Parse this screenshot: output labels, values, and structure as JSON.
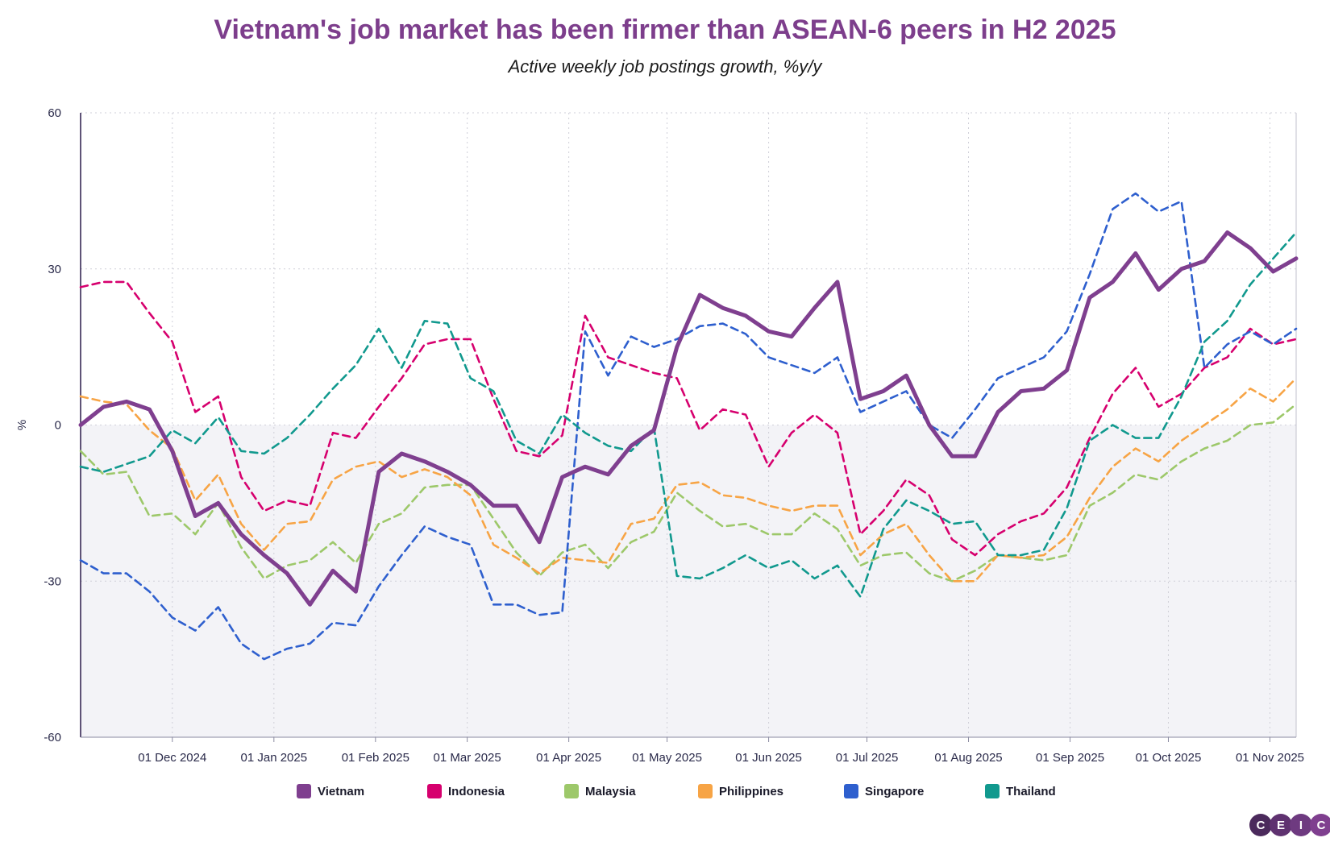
{
  "chart_data": {
    "type": "line",
    "title": "Vietnam's job market has been firmer than ASEAN-6 peers in H2 2025",
    "subtitle": "Active weekly job postings growth, %y/y",
    "ylabel": "%",
    "xlabel": "",
    "ylim": [
      -60,
      60
    ],
    "yticks": [
      "60",
      "30",
      "0",
      "-30",
      "-60"
    ],
    "xticks": [
      "01 Dec 2024",
      "01 Jan 2025",
      "01 Feb 2025",
      "01 Mar 2025",
      "01 Apr 2025",
      "01 May 2025",
      "01 Jun 2025",
      "01 Jul 2025",
      "01 Aug 2025",
      "01 Sep 2025",
      "01 Oct 2025",
      "01 Nov 2025"
    ],
    "x_start": "2024-11-03",
    "x_step_days": 7,
    "legend_position": "bottom",
    "grid": true,
    "series": [
      {
        "name": "Vietnam",
        "color": "#7f3f8f",
        "style": "solid",
        "values": [
          0,
          3.5,
          4.5,
          3,
          -5,
          -17.5,
          -15,
          -21,
          -25,
          -28.5,
          -34.5,
          -28,
          -32,
          -9,
          -5.5,
          -7,
          -9,
          -11.5,
          -15.5,
          -15.5,
          -22.5,
          -10,
          -8,
          -9.5,
          -4,
          -1,
          15,
          25,
          22.5,
          21,
          18,
          17,
          22.5,
          27.5,
          5,
          6.5,
          9.5,
          0,
          -6,
          -6,
          2.5,
          6.5,
          7,
          10.5,
          24.5,
          27.5,
          33,
          26,
          30,
          31.5,
          37,
          34,
          29.5,
          32
        ]
      },
      {
        "name": "Indonesia",
        "color": "#d6006e",
        "style": "dashed",
        "values": [
          26.5,
          27.5,
          27.5,
          21.5,
          16,
          2.5,
          5.5,
          -10,
          -16.5,
          -14.5,
          -15.5,
          -1.5,
          -2.5,
          3.5,
          9,
          15.5,
          16.5,
          16.5,
          5,
          -5,
          -6,
          -2,
          21,
          13,
          11.5,
          10,
          9,
          -1,
          3,
          2,
          -8,
          -1.5,
          2,
          -1.5,
          -21,
          -16.5,
          -10.5,
          -13.5,
          -22,
          -25,
          -21,
          -18.5,
          -17,
          -12,
          -2.5,
          6,
          11,
          3.5,
          6,
          11,
          13,
          18.5,
          15.5,
          16.5
        ]
      },
      {
        "name": "Malaysia",
        "color": "#9dc86a",
        "style": "dashed",
        "values": [
          -5,
          -9.5,
          -9,
          -17.5,
          -17,
          -21,
          -15,
          -23.5,
          -29.5,
          -27,
          -26,
          -22.5,
          -26.5,
          -19,
          -17,
          -12,
          -11.5,
          -11.5,
          -18,
          -24.5,
          -29,
          -24.5,
          -23,
          -27.5,
          -22.5,
          -20.5,
          -13,
          -16.5,
          -19.5,
          -19,
          -21,
          -21,
          -17,
          -20,
          -27,
          -25,
          -24.5,
          -28.5,
          -30,
          -28,
          -25,
          -25.5,
          -26,
          -25,
          -15.5,
          -13,
          -9.5,
          -10.5,
          -7,
          -4.5,
          -3,
          0,
          0.5,
          4
        ]
      },
      {
        "name": "Philippines",
        "color": "#f7a445",
        "style": "dashed",
        "values": [
          5.5,
          4.5,
          4,
          -1,
          -4.5,
          -14.5,
          -9.5,
          -19,
          -24,
          -19,
          -18.5,
          -10.5,
          -8,
          -7,
          -10,
          -8.5,
          -10,
          -13.5,
          -23,
          -25.5,
          -28.5,
          -25.5,
          -26,
          -26.5,
          -19,
          -18,
          -11.5,
          -11,
          -13.5,
          -14,
          -15.5,
          -16.5,
          -15.5,
          -15.5,
          -25,
          -21,
          -19,
          -25,
          -30,
          -30,
          -25,
          -25.5,
          -25,
          -21.5,
          -14,
          -8,
          -4.5,
          -7,
          -3,
          0,
          3,
          7,
          4.5,
          9
        ]
      },
      {
        "name": "Singapore",
        "color": "#2e5fce",
        "style": "dashed",
        "values": [
          -26,
          -28.5,
          -28.5,
          -32,
          -37,
          -39.5,
          -35,
          -42,
          -45,
          -43,
          -42,
          -38,
          -38.5,
          -31,
          -25,
          -19.5,
          -21.5,
          -23,
          -34.5,
          -34.5,
          -36.5,
          -36,
          18,
          9.5,
          17,
          15,
          16.5,
          19,
          19.5,
          17.5,
          13,
          11.5,
          10,
          13,
          2.5,
          4.5,
          6.5,
          0,
          -2.5,
          3,
          9,
          11,
          13,
          18,
          29,
          41.5,
          44.5,
          41,
          43,
          11,
          15.5,
          18,
          15.5,
          18.5
        ]
      },
      {
        "name": "Thailand",
        "color": "#11998e",
        "style": "dashed",
        "values": [
          -8,
          -9,
          -7.5,
          -6,
          -1,
          -3.5,
          1.5,
          -5,
          -5.5,
          -2.5,
          2,
          7,
          11.5,
          18.5,
          11,
          20,
          19.5,
          9,
          6.5,
          -3,
          -5.5,
          2,
          -1.5,
          -4,
          -5,
          -0.5,
          -29,
          -29.5,
          -27.5,
          -25,
          -27.5,
          -26,
          -29.5,
          -27,
          -33,
          -20,
          -14.5,
          -16.5,
          -19,
          -18.5,
          -25,
          -25,
          -24,
          -16,
          -3,
          0,
          -2.5,
          -2.5,
          5.5,
          16,
          20,
          27,
          32,
          37
        ]
      }
    ]
  },
  "brand": {
    "letters": [
      "C",
      "E",
      "I",
      "C"
    ],
    "colors": [
      "#4b2a5c",
      "#5f3270",
      "#6e3a80",
      "#7f3f8f"
    ]
  }
}
